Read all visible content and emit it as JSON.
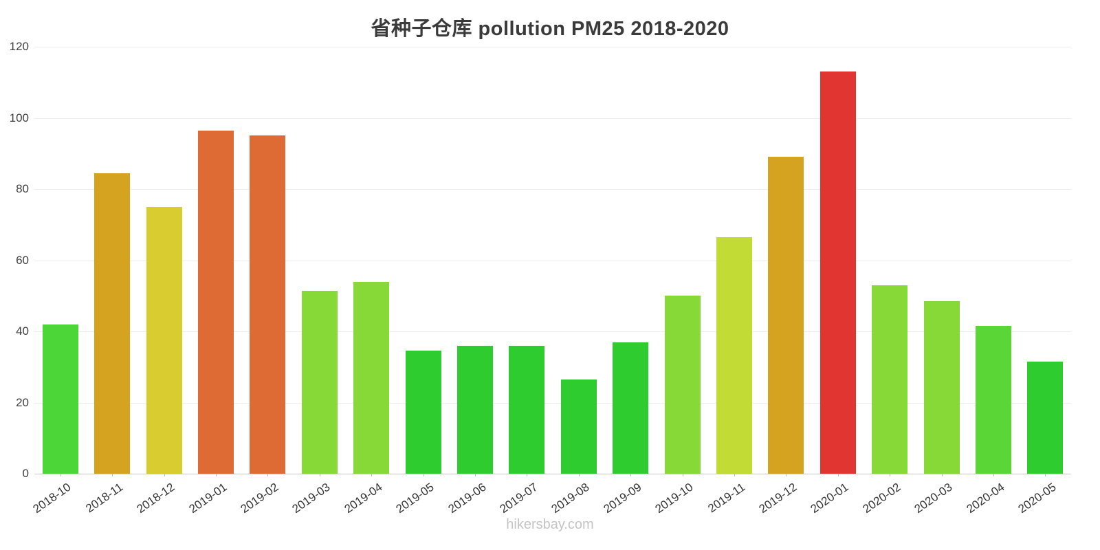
{
  "title": "省种子仓库 pollution PM25 2018-2020",
  "watermark": "hikersbay.com",
  "chart_data": {
    "type": "bar",
    "title": "省种子仓库 pollution PM25 2018-2020",
    "xlabel": "",
    "ylabel": "",
    "ylim": [
      0,
      120
    ],
    "yticks": [
      0,
      20,
      40,
      60,
      80,
      100,
      120
    ],
    "grid": "horizontal",
    "legend": "none",
    "categories": [
      "2018-10",
      "2018-11",
      "2018-12",
      "2019-01",
      "2019-02",
      "2019-03",
      "2019-04",
      "2019-05",
      "2019-06",
      "2019-07",
      "2019-08",
      "2019-09",
      "2019-10",
      "2019-11",
      "2019-12",
      "2020-01",
      "2020-02",
      "2020-03",
      "2020-04",
      "2020-05"
    ],
    "values": [
      42,
      84.5,
      75,
      96.5,
      95,
      51.5,
      54,
      34.5,
      36,
      36,
      26.5,
      37,
      50,
      66.5,
      89,
      113,
      53,
      48.5,
      41.5,
      31.5
    ],
    "bar_colors": [
      "#4cd637",
      "#d6a321",
      "#d8cc30",
      "#dd6b33",
      "#dd6b33",
      "#86d937",
      "#86d937",
      "#2fcc2f",
      "#2fcc2f",
      "#2fcc2f",
      "#2fcc2f",
      "#2fcc2f",
      "#86d937",
      "#c3dc35",
      "#d6a321",
      "#e03531",
      "#86d937",
      "#86d937",
      "#5ad637",
      "#2fcc2f"
    ]
  },
  "colors": {
    "grid": "#ececec",
    "axis": "#c9c9c9",
    "tick_label": "#404040",
    "title": "#3a3a3a",
    "watermark": "#c4c4c4"
  }
}
